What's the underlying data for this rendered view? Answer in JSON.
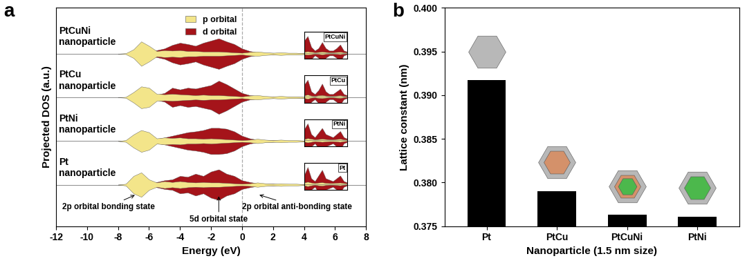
{
  "chart_data": [
    {
      "type": "area",
      "panel": "a",
      "x_label": "Energy (eV)",
      "y_label": "Projected DOS (a.u.)",
      "xlim": [
        -12,
        8
      ],
      "xticks": [
        -12,
        -10,
        -8,
        -6,
        -4,
        -2,
        0,
        2,
        4,
        6,
        8
      ],
      "tick_labels": "x",
      "legend": "upper center",
      "vline": 0,
      "series": [
        {
          "name": "p orbital",
          "color": "#f3e58a"
        },
        {
          "name": "d orbital",
          "color": "#a5141a"
        }
      ],
      "x": [
        -8,
        -7.5,
        -7,
        -6.5,
        -6,
        -5.5,
        -5,
        -4.5,
        -4,
        -3.5,
        -3,
        -2.5,
        -2,
        -1.5,
        -1,
        -0.5,
        0,
        0.5,
        1,
        1.5,
        2,
        2.5,
        3,
        3.5,
        4
      ],
      "inset_x": [
        4.2,
        4.4,
        4.6,
        4.8,
        5.0,
        5.2,
        5.4,
        5.6,
        5.8,
        6.0,
        6.2,
        6.4,
        6.6
      ],
      "rows": [
        {
          "label": "PtCuNi\nnanoparticle",
          "inset_label": "PtCuNi",
          "values": [
            [
              0,
              0.01,
              0.1,
              0.28,
              0.18,
              0.06,
              0.08,
              0.07,
              0.08,
              0.06,
              0.06,
              0.05,
              0.05,
              0.05,
              0.04,
              0.03,
              0.02,
              0.04,
              0.05,
              0.03,
              0.02,
              0.03,
              0.02,
              0.02,
              0.01
            ],
            [
              0,
              0,
              0.02,
              0.03,
              0.05,
              0.08,
              0.12,
              0.2,
              0.25,
              0.22,
              0.18,
              0.25,
              0.3,
              0.35,
              0.28,
              0.22,
              0.12,
              0.06,
              0.03,
              0.02,
              0.02,
              0.01,
              0.01,
              0.01,
              0.01
            ]
          ],
          "inset_values": [
            [
              0.05,
              0.07,
              0.05,
              0.03,
              0.04,
              0.06,
              0.04,
              0.03,
              0.03,
              0.04,
              0.05,
              0.03,
              0.02
            ],
            [
              0.5,
              0.7,
              0.25,
              0.1,
              0.2,
              0.45,
              0.2,
              0.1,
              0.1,
              0.2,
              0.35,
              0.1,
              0.05
            ]
          ]
        },
        {
          "label": "PtCu\nnanoparticle",
          "inset_label": "PtCu",
          "values": [
            [
              0,
              0.01,
              0.12,
              0.25,
              0.22,
              0.08,
              0.07,
              0.08,
              0.07,
              0.06,
              0.05,
              0.06,
              0.05,
              0.05,
              0.04,
              0.03,
              0.02,
              0.04,
              0.05,
              0.03,
              0.02,
              0.03,
              0.02,
              0.02,
              0.01
            ],
            [
              0,
              0,
              0.02,
              0.03,
              0.04,
              0.06,
              0.1,
              0.22,
              0.18,
              0.22,
              0.2,
              0.24,
              0.28,
              0.38,
              0.3,
              0.2,
              0.1,
              0.05,
              0.03,
              0.02,
              0.02,
              0.01,
              0.01,
              0.01,
              0.01
            ]
          ],
          "inset_values": [
            [
              0.05,
              0.08,
              0.04,
              0.03,
              0.05,
              0.06,
              0.04,
              0.03,
              0.03,
              0.04,
              0.05,
              0.03,
              0.02
            ],
            [
              0.45,
              0.65,
              0.2,
              0.1,
              0.25,
              0.5,
              0.2,
              0.1,
              0.1,
              0.2,
              0.3,
              0.1,
              0.05
            ]
          ]
        },
        {
          "label": "PtNi\nnanoparticle",
          "inset_label": "PtNi",
          "values": [
            [
              0,
              0.02,
              0.15,
              0.25,
              0.2,
              0.06,
              0.08,
              0.07,
              0.08,
              0.06,
              0.06,
              0.05,
              0.06,
              0.05,
              0.04,
              0.03,
              0.02,
              0.03,
              0.05,
              0.03,
              0.02,
              0.03,
              0.02,
              0.02,
              0.01
            ],
            [
              0,
              0,
              0.02,
              0.04,
              0.04,
              0.05,
              0.08,
              0.12,
              0.16,
              0.2,
              0.22,
              0.25,
              0.3,
              0.3,
              0.28,
              0.22,
              0.12,
              0.06,
              0.03,
              0.02,
              0.02,
              0.01,
              0.01,
              0.01,
              0.01
            ]
          ],
          "inset_values": [
            [
              0.04,
              0.07,
              0.05,
              0.03,
              0.04,
              0.05,
              0.04,
              0.03,
              0.03,
              0.04,
              0.05,
              0.03,
              0.02
            ],
            [
              0.35,
              0.55,
              0.2,
              0.1,
              0.25,
              0.4,
              0.2,
              0.15,
              0.1,
              0.2,
              0.3,
              0.1,
              0.05
            ]
          ]
        },
        {
          "label": "Pt\nnanoparticle",
          "inset_label": "Pt",
          "values": [
            [
              0,
              0.02,
              0.2,
              0.28,
              0.12,
              0.05,
              0.08,
              0.06,
              0.08,
              0.06,
              0.05,
              0.06,
              0.05,
              0.05,
              0.04,
              0.03,
              0.02,
              0.03,
              0.05,
              0.03,
              0.02,
              0.03,
              0.02,
              0.02,
              0.01
            ],
            [
              0,
              0,
              0.02,
              0.04,
              0.03,
              0.06,
              0.1,
              0.12,
              0.2,
              0.18,
              0.25,
              0.2,
              0.3,
              0.35,
              0.25,
              0.2,
              0.1,
              0.06,
              0.03,
              0.02,
              0.02,
              0.01,
              0.01,
              0.01,
              0.01
            ]
          ],
          "inset_values": [
            [
              0.05,
              0.08,
              0.05,
              0.03,
              0.05,
              0.06,
              0.04,
              0.03,
              0.03,
              0.04,
              0.05,
              0.03,
              0.02
            ],
            [
              0.3,
              0.6,
              0.2,
              0.1,
              0.3,
              0.5,
              0.2,
              0.15,
              0.1,
              0.2,
              0.3,
              0.1,
              0.05
            ]
          ]
        }
      ],
      "annotations": [
        {
          "text": "2p orbital bonding state",
          "x": -6.8
        },
        {
          "text": "5d orbital state",
          "x": -1.5
        },
        {
          "text": "2p orbital anti-bonding state",
          "x": 1.0
        }
      ]
    },
    {
      "type": "bar",
      "panel": "b",
      "categories": [
        "Pt",
        "PtCu",
        "PtCuNi",
        "PtNi"
      ],
      "values": [
        0.3917,
        0.379,
        0.3763,
        0.3761
      ],
      "color": "#000000",
      "x_label": "Nanoparticle (1.5 nm size)",
      "y_label": "Lattice constant (nm)",
      "ylim": [
        0.375,
        0.4
      ],
      "yticks": [
        {
          "value": 0.375,
          "label": "0.375"
        },
        {
          "value": 0.38,
          "label": "0.380"
        },
        {
          "value": 0.385,
          "label": "0.385"
        },
        {
          "value": 0.39,
          "label": "0.390"
        },
        {
          "value": 0.395,
          "label": "0.395"
        },
        {
          "value": 0.4,
          "label": "0.400"
        }
      ]
    }
  ]
}
